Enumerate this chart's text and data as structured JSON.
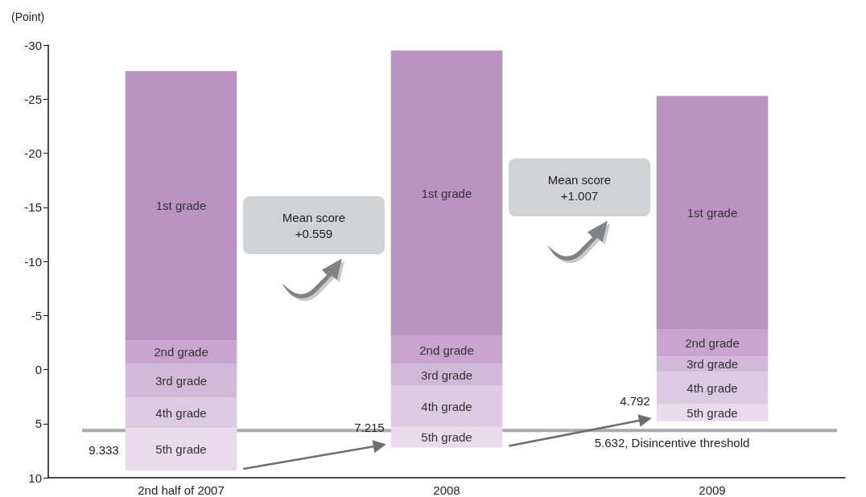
{
  "chart_data": {
    "type": "bar",
    "ylabel": "(Point)",
    "categories": [
      "2nd half of 2007",
      "2008",
      "2009"
    ],
    "series": [
      {
        "name": "5th grade",
        "color": "#e9dbec",
        "base": [
          9.333,
          7.215,
          4.792
        ],
        "values": [
          -3.9,
          -1.9,
          -1.6
        ]
      },
      {
        "name": "4th grade",
        "color": "#ddc9e2",
        "base": [
          5.4,
          5.3,
          3.2
        ],
        "values": [
          -2.8,
          -3.8,
          -3.0
        ]
      },
      {
        "name": "3rd grade",
        "color": "#d3b9d9",
        "base": [
          2.6,
          1.5,
          0.2
        ],
        "values": [
          -3.1,
          -2.0,
          -1.4
        ]
      },
      {
        "name": "2nd grade",
        "color": "#c8a5cd",
        "base": [
          -0.5,
          -0.5,
          -1.2
        ],
        "values": [
          -2.2,
          -2.6,
          -2.5
        ]
      },
      {
        "name": "1st grade",
        "color": "#bb93c3",
        "base": [
          -2.7,
          -3.1,
          -3.7
        ],
        "values": [
          -24.9,
          -26.4,
          -21.6
        ]
      }
    ],
    "ylim": [
      10,
      -30
    ],
    "yticks": [
      -30,
      -25,
      -20,
      -15,
      -10,
      -5,
      0,
      5,
      10
    ],
    "grid": false,
    "legend": false,
    "ref_lines": [
      {
        "axis": "y",
        "value": 5.632,
        "label": "5.632, Disincentive threshold",
        "color": "#a7a9ac"
      }
    ],
    "annotations": [
      "9.333",
      "7.215",
      "4.792",
      "Mean score\n+0.559",
      "Mean score\n+1.007"
    ]
  }
}
